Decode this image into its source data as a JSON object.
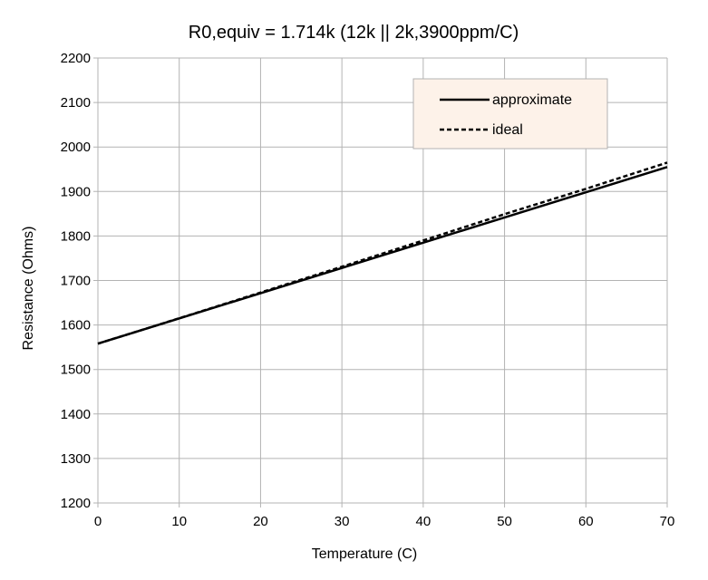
{
  "chart_data": {
    "type": "line",
    "title": "R0,equiv = 1.714k (12k || 2k,3900ppm/C)",
    "xlabel": "Temperature (C)",
    "ylabel": "Resistance (Ohms)",
    "xlim": [
      0,
      70
    ],
    "ylim": [
      1200,
      2200
    ],
    "xticks": [
      0,
      10,
      20,
      30,
      40,
      50,
      60,
      70
    ],
    "yticks": [
      1200,
      1300,
      1400,
      1500,
      1600,
      1700,
      1800,
      1900,
      2000,
      2100,
      2200
    ],
    "grid": true,
    "legend_position": "top-right",
    "series": [
      {
        "name": "approximate",
        "style": "solid",
        "color": "#000000",
        "x": [
          0,
          70
        ],
        "y": [
          1558,
          1955
        ]
      },
      {
        "name": "ideal",
        "style": "dashed",
        "color": "#000000",
        "x": [
          0,
          10,
          20,
          30,
          40,
          50,
          60,
          70
        ],
        "y": [
          1558,
          1615,
          1673,
          1731,
          1790,
          1849,
          1906,
          1965
        ]
      }
    ],
    "colors": {
      "grid": "#b3b3b3",
      "legend_background": "#fdf2e9"
    }
  }
}
